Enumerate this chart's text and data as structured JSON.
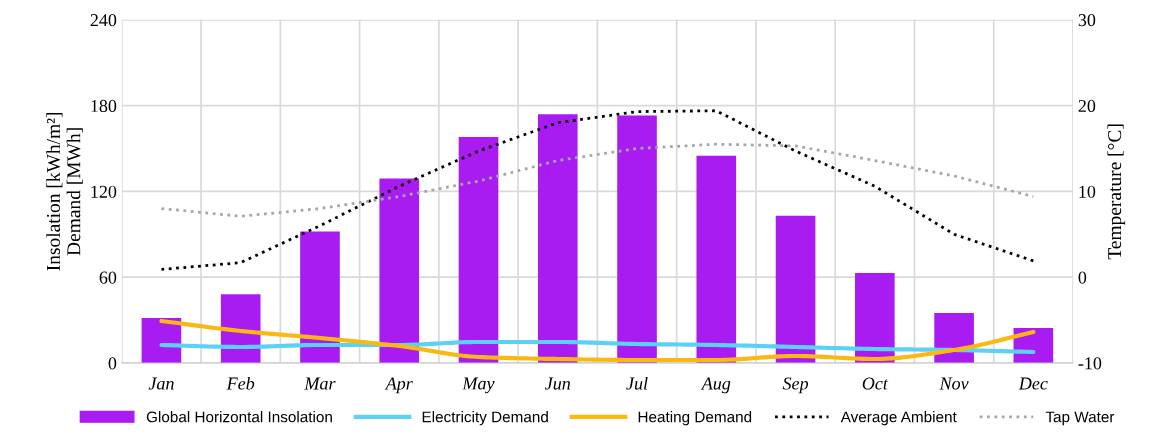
{
  "chart_data": {
    "type": "bar",
    "ylabel": "Insolation [kWh/m²]\nDemand [MWh]",
    "y2label": "Temperature [°C]",
    "categories": [
      "Jan",
      "Feb",
      "Mar",
      "Apr",
      "May",
      "Jun",
      "Jul",
      "Aug",
      "Sep",
      "Oct",
      "Nov",
      "Dec"
    ],
    "series": [
      {
        "name": "Global Horizontal Insolation",
        "color": "#a81cf2",
        "values": [
          31.5,
          48,
          92,
          129,
          158,
          174,
          173,
          145,
          103,
          63,
          35,
          24.5
        ]
      },
      {
        "name": "Electricity Demand",
        "type": "line",
        "color": "#5bd2f5",
        "line_style": "solid",
        "values": [
          12.6,
          11.2,
          12.6,
          12.6,
          14.7,
          14.7,
          13.3,
          12.6,
          11.2,
          9.8,
          9.1,
          7.7
        ]
      },
      {
        "name": "Heating Demand",
        "type": "line",
        "color": "#fbb811",
        "line_style": "solid",
        "values": [
          29.4,
          22.4,
          17.5,
          11.9,
          4.2,
          2.8,
          2.1,
          2.1,
          4.9,
          2.8,
          9.1,
          21.7
        ]
      },
      {
        "name": "Average Ambient",
        "type": "line",
        "axis": "y2",
        "color": "#000000",
        "line_style": "dotted",
        "values": [
          0.9,
          1.7,
          6,
          10.6,
          14.7,
          18,
          19.3,
          19.4,
          14.7,
          10.6,
          5,
          1.9
        ]
      },
      {
        "name": "Tap Water",
        "type": "line",
        "axis": "y2",
        "color": "#a6a6a6",
        "line_style": "dotted",
        "values": [
          8,
          7.1,
          8,
          9.4,
          11.2,
          13.6,
          15,
          15.5,
          15.3,
          13.6,
          11.8,
          9.4
        ]
      }
    ],
    "ylim": [
      0,
      240
    ],
    "yticks": [
      0,
      60,
      120,
      180,
      240
    ],
    "y2lim": [
      -10,
      30
    ],
    "y2ticks": [
      -10,
      0,
      10,
      20,
      30
    ],
    "grid": true,
    "legend": "bottom"
  }
}
